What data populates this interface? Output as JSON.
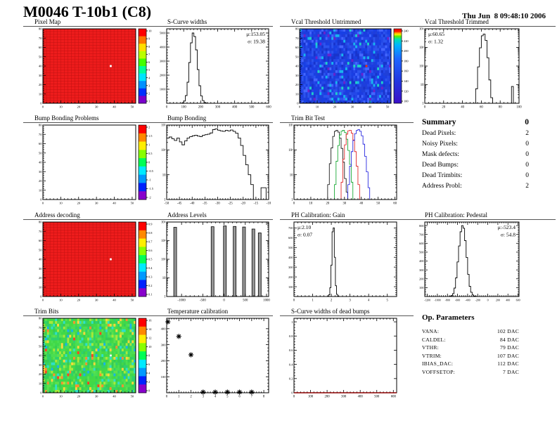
{
  "page": {
    "title": "M0046 T-10b1 (C8)",
    "date": "Thu Jun  8 09:48:10 2006"
  },
  "summary": {
    "title": "Summary",
    "header_value": "0",
    "rows": [
      {
        "label": "Dead Pixels:",
        "value": "2"
      },
      {
        "label": "Noisy Pixels:",
        "value": "0"
      },
      {
        "label": "Mask defects:",
        "value": "0"
      },
      {
        "label": "Dead Bumps:",
        "value": "0"
      },
      {
        "label": "Dead Trimbits:",
        "value": "0"
      },
      {
        "label": "Address Probl:",
        "value": "2"
      }
    ]
  },
  "op_parameters": {
    "title": "Op. Parameters",
    "rows": [
      {
        "label": "VANA:",
        "value": "102 DAC"
      },
      {
        "label": "CALDEL:",
        "value": "84 DAC"
      },
      {
        "label": "VTHR:",
        "value": "79 DAC"
      },
      {
        "label": "VTRIM:",
        "value": "107 DAC"
      },
      {
        "label": "IBIAS_DAC:",
        "value": "112 DAC"
      },
      {
        "label": "VOFFSETOP:",
        "value": "7 DAC"
      }
    ]
  },
  "chart_data": [
    {
      "id": "pixel_map",
      "type": "heatmap",
      "title": "Pixel Map",
      "mode": "solid",
      "base": "#ee1c1c",
      "grid": "#c21212",
      "x_max": 52,
      "y_max": 80,
      "x_ticks": [
        0,
        10,
        20,
        30,
        40,
        50
      ],
      "y_ticks": [
        0,
        10,
        20,
        30,
        40,
        50,
        60,
        70,
        80
      ],
      "dot": {
        "cx": 38,
        "cy": 40,
        "color": "#ffffff"
      },
      "colorbar": {
        "discrete": true,
        "colors": [
          "#ff0000",
          "#ff7700",
          "#ffdd00",
          "#bbff00",
          "#44ff00",
          "#00ff99",
          "#00e4ff",
          "#0090ff",
          "#0030ff",
          "#7a00cc"
        ],
        "labels": [
          "10",
          "9",
          "8",
          "7",
          "6",
          "5",
          "4",
          "3",
          "2",
          "1"
        ]
      }
    },
    {
      "id": "scurve_widths",
      "type": "hist",
      "title": "S-Curve widths",
      "x_range": [
        0,
        600
      ],
      "x_ticks": [
        0,
        100,
        200,
        300,
        400,
        500,
        600
      ],
      "hist": {
        "x0": 80,
        "bw": 10,
        "counts": [
          0,
          40,
          160,
          550,
          1500,
          2900,
          4300,
          5000,
          4750,
          3800,
          2400,
          1250,
          520,
          190,
          60,
          18,
          5
        ]
      },
      "y": {
        "scale": "linear",
        "max": 5300,
        "ticks": [
          1000,
          2000,
          3000,
          4000,
          5000
        ]
      },
      "stats": {
        "corner": "tr",
        "lines": [
          "μ:153.05",
          "σ: 19.38"
        ]
      }
    },
    {
      "id": "vcal_untrimmed",
      "type": "heatmap",
      "title": "Vcal Threshold Untrimmed",
      "mode": "noise",
      "x_max": 52,
      "y_max": 80,
      "x_ticks": [
        0,
        10,
        20,
        30,
        40,
        50
      ],
      "y_ticks": [
        0,
        10,
        20,
        30,
        40,
        50,
        60,
        70,
        80
      ],
      "palette": [
        "#1c3ce0",
        "#2448e8",
        "#1834cc",
        "#2c54ee",
        "#2040d8",
        "#1840e4"
      ],
      "accents": [
        [
          "#18b4ee",
          0.05
        ],
        [
          "#20d0c8",
          0.02
        ],
        [
          "#6a22cc",
          0.015
        ],
        [
          "#4466ff",
          0.08
        ]
      ],
      "dot": {
        "cx": 38,
        "cy": 40,
        "color": "#ff3300"
      },
      "colorbar": {
        "discrete": false,
        "stops": [
          [
            0,
            "#ff1000"
          ],
          [
            0.035,
            "#ff1000"
          ],
          [
            0.055,
            "#ff9900"
          ],
          [
            0.075,
            "#ffee00"
          ],
          [
            0.1,
            "#55ee00"
          ],
          [
            0.14,
            "#00e0b0"
          ],
          [
            0.22,
            "#00b4ff"
          ],
          [
            0.4,
            "#1e66ff"
          ],
          [
            0.7,
            "#2238e0"
          ],
          [
            1,
            "#3a10c8"
          ]
        ],
        "labels": [
          "240",
          "220",
          "200",
          "180",
          "160",
          "140",
          "120",
          "100"
        ]
      }
    },
    {
      "id": "vcal_trimmed",
      "type": "hist",
      "title": "Vcal Threshold Trimmed",
      "x_range": [
        0,
        100
      ],
      "x_ticks": [
        0,
        20,
        40,
        60,
        80,
        100
      ],
      "hist": {
        "x0": 52,
        "bw": 2,
        "counts": [
          1,
          6,
          90,
          950,
          4200,
          5200,
          2400,
          280,
          18,
          2
        ]
      },
      "extra_bars": [
        {
          "x": 92,
          "w": 2,
          "h": 8
        }
      ],
      "y": {
        "scale": "log",
        "decades": 4
      },
      "stats": {
        "corner": "tl",
        "lines": [
          "μ:60.65",
          "σ: 1.32"
        ]
      }
    },
    {
      "id": "bump_problems",
      "type": "heatmap",
      "title": "Bump Bonding Problems",
      "mode": "empty",
      "x_max": 52,
      "y_max": 80,
      "x_ticks": [
        0,
        10,
        20,
        30,
        40,
        50
      ],
      "y_ticks": [
        0,
        10,
        20,
        30,
        40,
        50,
        60,
        70,
        80
      ],
      "colorbar": {
        "discrete": true,
        "colors": [
          "#ff0000",
          "#ff8800",
          "#ffee00",
          "#88ff00",
          "#00ff55",
          "#00eaff",
          "#0099ff",
          "#0022ff",
          "#8800cc"
        ],
        "labels": [
          "2",
          "1.5",
          "1",
          "0.5",
          "0",
          "-0.5",
          "-1",
          "-1.5",
          "-2"
        ]
      }
    },
    {
      "id": "bump_bonding",
      "type": "hist",
      "title": "Bump Bonding",
      "x_range": [
        -50,
        -10
      ],
      "x_ticks": [
        -50,
        -45,
        -40,
        -35,
        -30,
        -25,
        -20,
        -15,
        -10
      ],
      "hist": {
        "x0": -50,
        "bw": 1,
        "counts": [
          300,
          330,
          280,
          240,
          300,
          210,
          160,
          230,
          300,
          340,
          370,
          390,
          360,
          340,
          390,
          410,
          430,
          480,
          660,
          700,
          620,
          580,
          560,
          610,
          580,
          630,
          560,
          470,
          300,
          150,
          60,
          25,
          10,
          4,
          0,
          0,
          0,
          3,
          3,
          0
        ]
      },
      "y": {
        "scale": "log",
        "decades": 3
      }
    },
    {
      "id": "trim_bit_test",
      "type": "multi_hist",
      "title": "Trim Bit Test",
      "x_range": [
        0,
        61
      ],
      "x_ticks": [
        0,
        10,
        20,
        30,
        40,
        50,
        60
      ],
      "y": {
        "scale": "log",
        "decades": 3
      },
      "series": [
        {
          "color": "#000000",
          "pairs": [
            [
              5,
              1
            ],
            [
              7,
              1
            ],
            [
              11,
              1
            ],
            [
              13,
              1
            ],
            [
              20,
              4
            ],
            [
              21,
              28
            ],
            [
              22,
              120
            ],
            [
              23,
              350
            ],
            [
              24,
              560
            ],
            [
              25,
              620
            ],
            [
              26,
              520
            ],
            [
              27,
              300
            ],
            [
              28,
              115
            ],
            [
              29,
              32
            ],
            [
              30,
              7
            ],
            [
              31,
              2
            ]
          ]
        },
        {
          "color": "#00a020",
          "pairs": [
            [
              6,
              1
            ],
            [
              9,
              1
            ],
            [
              14,
              1
            ],
            [
              16,
              1
            ],
            [
              24,
              4
            ],
            [
              25,
              35
            ],
            [
              26,
              150
            ],
            [
              27,
              400
            ],
            [
              28,
              570
            ],
            [
              29,
              620
            ],
            [
              30,
              500
            ],
            [
              31,
              270
            ],
            [
              32,
              95
            ],
            [
              33,
              26
            ],
            [
              34,
              5
            ]
          ]
        },
        {
          "color": "#dd1111",
          "pairs": [
            [
              8,
              1
            ],
            [
              12,
              1
            ],
            [
              17,
              1
            ],
            [
              28,
              5
            ],
            [
              29,
              42
            ],
            [
              30,
              160
            ],
            [
              31,
              430
            ],
            [
              32,
              590
            ],
            [
              33,
              620
            ],
            [
              34,
              470
            ],
            [
              35,
              250
            ],
            [
              36,
              85
            ],
            [
              37,
              22
            ],
            [
              38,
              4
            ]
          ]
        },
        {
          "color": "#1111dd",
          "pairs": [
            [
              10,
              1
            ],
            [
              15,
              1
            ],
            [
              18,
              1
            ],
            [
              32,
              4
            ],
            [
              33,
              22
            ],
            [
              34,
              85
            ],
            [
              35,
              240
            ],
            [
              36,
              450
            ],
            [
              37,
              610
            ],
            [
              38,
              660
            ],
            [
              39,
              560
            ],
            [
              40,
              370
            ],
            [
              41,
              170
            ],
            [
              42,
              55
            ],
            [
              43,
              13
            ],
            [
              44,
              3
            ]
          ]
        }
      ]
    },
    {
      "id": "address_decoding",
      "type": "heatmap",
      "title": "Address decoding",
      "mode": "solid",
      "base": "#ee1c1c",
      "grid": "#c21212",
      "x_max": 52,
      "y_max": 80,
      "x_ticks": [
        0,
        10,
        20,
        30,
        40,
        50
      ],
      "y_ticks": [
        0,
        10,
        20,
        30,
        40,
        50,
        60,
        70,
        80
      ],
      "dot": {
        "cx": 38,
        "cy": 40,
        "color": "#ffffff"
      },
      "colorbar": {
        "discrete": true,
        "colors": [
          "#ff0000",
          "#ff8800",
          "#ffee00",
          "#88ff00",
          "#00ff55",
          "#00eaff",
          "#0099ff",
          "#0022ff",
          "#8800cc"
        ],
        "labels": [
          "0.9",
          "0.8",
          "0.7",
          "0.6",
          "0.5",
          "0.4",
          "0.3",
          "0.2",
          "0.1"
        ]
      }
    },
    {
      "id": "address_levels",
      "type": "spikes",
      "title": "Address Levels",
      "x_range": [
        -1350,
        1050
      ],
      "x_ticks": [
        -1000,
        -500,
        0,
        500,
        1000
      ],
      "y": {
        "scale": "log",
        "decades": 4
      },
      "spikes": [
        [
          -1150,
          5200
        ],
        [
          -270,
          5600
        ],
        [
          20,
          6200
        ],
        [
          250,
          5800
        ],
        [
          470,
          5400
        ],
        [
          690,
          4200
        ],
        [
          840,
          2600
        ]
      ]
    },
    {
      "id": "ph_gain",
      "type": "hist",
      "title": "PH Calibration: Gain",
      "x_range": [
        0,
        5.5
      ],
      "x_ticks": [
        0,
        1,
        2,
        3,
        4,
        5
      ],
      "hist": {
        "x0": 1.8,
        "bw": 0.06,
        "counts": [
          3,
          18,
          90,
          320,
          660,
          700,
          400,
          110,
          22,
          4
        ]
      },
      "y": {
        "scale": "linear",
        "max": 760,
        "ticks": [
          100,
          200,
          300,
          400,
          500,
          600,
          700
        ]
      },
      "stats": {
        "corner": "tl",
        "lines": [
          "μ:2.10",
          "σ: 0.07"
        ]
      }
    },
    {
      "id": "ph_pedestal",
      "type": "hist",
      "title": "PH Calibration: Pedestal",
      "x_range": [
        -1250,
        620
      ],
      "x_ticks": [
        -1200,
        -1000,
        -800,
        -600,
        -400,
        -200,
        0,
        200,
        400,
        600
      ],
      "x_label_fs": 4.0,
      "hist": {
        "x0": -760,
        "bw": 30,
        "counts": [
          3,
          10,
          32,
          95,
          210,
          390,
          570,
          730,
          800,
          770,
          630,
          440,
          250,
          115,
          48,
          17,
          5,
          2
        ]
      },
      "y": {
        "scale": "linear",
        "max": 840,
        "ticks": [
          100,
          200,
          300,
          400,
          500,
          600,
          700,
          800
        ]
      },
      "stats": {
        "corner": "tr",
        "lines": [
          "μ:-523.4",
          "σ: 54.8"
        ]
      }
    },
    {
      "id": "trim_bits",
      "type": "heatmap",
      "title": "Trim Bits",
      "mode": "noise",
      "x_max": 52,
      "y_max": 80,
      "x_ticks": [
        0,
        10,
        20,
        30,
        40,
        50
      ],
      "y_ticks": [
        0,
        10,
        20,
        30,
        40,
        50,
        60,
        70,
        80
      ],
      "palette": [
        "#3fd84a",
        "#4ade52",
        "#35cc55",
        "#5ce04e",
        "#2fd06e",
        "#45d945"
      ],
      "accents": [
        [
          "#a8e83a",
          0.07
        ],
        [
          "#ffd83a",
          0.03
        ],
        [
          "#ff9030",
          0.02
        ],
        [
          "#ff4422",
          0.012
        ],
        [
          "#2ee0c8",
          0.05
        ],
        [
          "#18b4e8",
          0.02
        ]
      ],
      "dot": {
        "cx": 38,
        "cy": 40,
        "color": "#ffffff"
      },
      "colorbar": {
        "discrete": true,
        "colors": [
          "#ff0000",
          "#ff8800",
          "#ffee00",
          "#88ff00",
          "#00ff55",
          "#00eaff",
          "#0099ff",
          "#0022ff",
          "#8800cc"
        ],
        "labels": [
          "16",
          "14",
          "12",
          "10",
          "8",
          "6",
          "4",
          "2",
          "0"
        ]
      }
    },
    {
      "id": "temp_calibration",
      "type": "scatter",
      "title": "Temperature calibration",
      "x_range": [
        0,
        8.4
      ],
      "x_ticks": [
        0,
        1,
        2,
        3,
        4,
        5,
        6,
        7,
        8
      ],
      "y_range": [
        0,
        465
      ],
      "y_ticks": [
        0,
        100,
        200,
        300,
        400
      ],
      "points": [
        [
          0.1,
          443
        ],
        [
          1,
          352
        ],
        [
          2,
          237
        ],
        [
          3,
          4
        ],
        [
          4,
          4
        ],
        [
          5,
          4
        ],
        [
          6,
          4
        ],
        [
          7,
          4
        ]
      ]
    },
    {
      "id": "scurve_dead",
      "type": "empty_axes",
      "title": "S-Curve widths of dead bumps",
      "x_range": [
        0,
        620
      ],
      "x_ticks": [
        0,
        100,
        200,
        300,
        400,
        500,
        600
      ],
      "y_range": [
        0,
        1.05
      ],
      "y_ticks": [
        0,
        0.2,
        0.4,
        0.6,
        0.8,
        1
      ],
      "axis_color": "#8b0000"
    }
  ]
}
